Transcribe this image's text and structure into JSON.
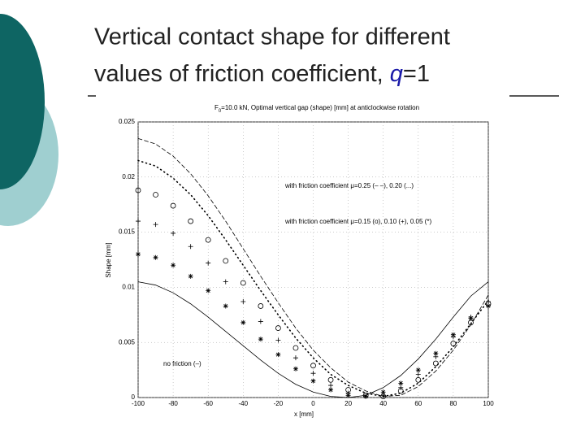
{
  "slide": {
    "title": "Vertical contact shape for different",
    "title_line2": "values of friction coefficient, ",
    "title_var": "q",
    "title_end": "=1"
  },
  "chart_data": {
    "type": "line",
    "title_main": "F",
    "title_sub": "0",
    "title_rest": "=10.0 kN, Optimal vertical gap (shape) [mm] at anticlockwise rotation",
    "x_label": "x [mm]",
    "y_label": "Shape [mm]",
    "annotations": [
      "with friction coefficient μ=0.25 (– –), 0.20 (...)",
      "with friction coefficient μ=0.15 (o),    0.10 (+), 0.05 (*)",
      "no friction (–)"
    ],
    "x": [
      -100,
      -90,
      -80,
      -70,
      -60,
      -50,
      -40,
      -30,
      -20,
      -10,
      0,
      10,
      20,
      30,
      40,
      50,
      60,
      70,
      80,
      90,
      100
    ],
    "series": [
      {
        "style": "dash",
        "color": "#000000",
        "values": [
          0.0235,
          0.023,
          0.0219,
          0.0203,
          0.0183,
          0.016,
          0.0135,
          0.011,
          0.0086,
          0.0063,
          0.0043,
          0.0027,
          0.0014,
          0.0006,
          0.0001,
          0.0002,
          0.001,
          0.0024,
          0.0043,
          0.0066,
          0.0093
        ]
      },
      {
        "style": "dot",
        "color": "#000000",
        "values": [
          0.0215,
          0.021,
          0.0199,
          0.0184,
          0.0165,
          0.0143,
          0.012,
          0.0097,
          0.0075,
          0.0054,
          0.0036,
          0.0021,
          0.0011,
          0.0004,
          0.0001,
          0.0004,
          0.0013,
          0.0028,
          0.0046,
          0.0067,
          0.0088
        ]
      },
      {
        "style": "circle",
        "color": "#000000",
        "values": [
          0.0188,
          0.0184,
          0.0174,
          0.016,
          0.0143,
          0.0124,
          0.0104,
          0.0083,
          0.0063,
          0.0045,
          0.0029,
          0.0016,
          0.0007,
          0.0002,
          0.0001,
          0.0006,
          0.0016,
          0.0031,
          0.0049,
          0.0068,
          0.0085
        ]
      },
      {
        "style": "plus",
        "color": "#000000",
        "values": [
          0.016,
          0.0157,
          0.0149,
          0.0137,
          0.0122,
          0.0105,
          0.0087,
          0.0069,
          0.0052,
          0.0036,
          0.0022,
          0.0011,
          0.0004,
          0.0001,
          0.0002,
          0.0009,
          0.0021,
          0.0037,
          0.0055,
          0.0073,
          0.0087
        ]
      },
      {
        "style": "star",
        "color": "#000000",
        "values": [
          0.013,
          0.0127,
          0.012,
          0.011,
          0.0097,
          0.0083,
          0.0068,
          0.0053,
          0.0039,
          0.0026,
          0.0015,
          0.0007,
          0.0002,
          0.0001,
          0.0005,
          0.0013,
          0.0025,
          0.004,
          0.0057,
          0.0072,
          0.0083
        ]
      },
      {
        "style": "solid",
        "color": "#000000",
        "values": [
          0.0105,
          0.0102,
          0.0095,
          0.0085,
          0.0073,
          0.006,
          0.0047,
          0.0034,
          0.0022,
          0.0012,
          0.0005,
          0.0001,
          0.0,
          0.0002,
          0.0009,
          0.002,
          0.0035,
          0.0053,
          0.0073,
          0.0092,
          0.0105
        ]
      }
    ],
    "xlim": [
      -100,
      100
    ],
    "xticks": [
      -100,
      -80,
      -60,
      -40,
      -20,
      0,
      20,
      40,
      60,
      80,
      100
    ],
    "ylim": [
      0,
      0.025
    ],
    "yticks": [
      0,
      0.005,
      0.01,
      0.015,
      0.02,
      0.025
    ],
    "grid": true
  }
}
